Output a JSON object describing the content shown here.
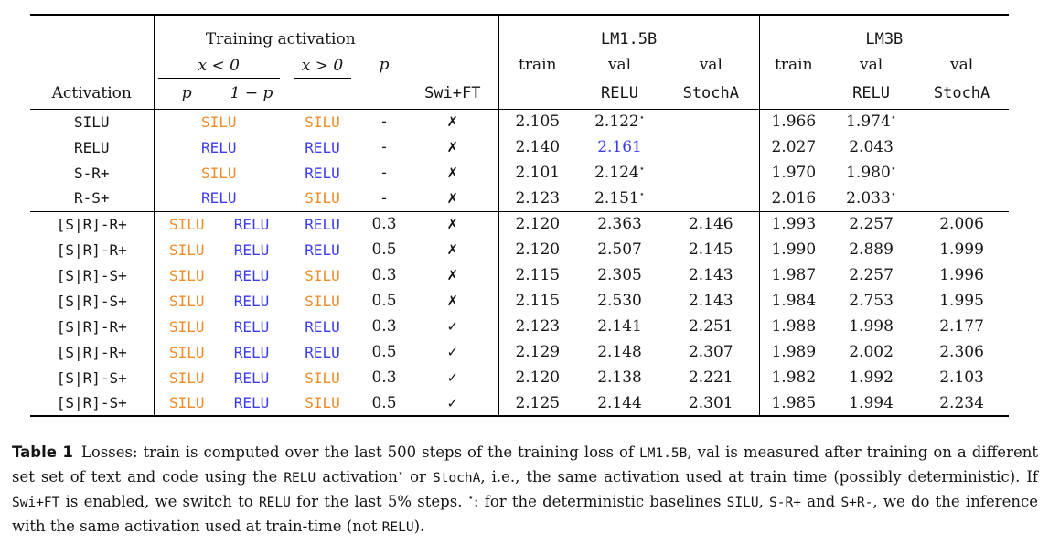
{
  "colors": {
    "silu": "#F08B26",
    "relu": "#3B3BF0"
  },
  "symbols": {
    "cross": "✗",
    "check": "✓",
    "star": "⋆"
  },
  "header": {
    "activation": "Activation",
    "training_activation": "Training activation",
    "x_lt": "x < 0",
    "x_gt": "x > 0",
    "p_col": "p",
    "p_sub": "p",
    "one_minus_p": "1 − p",
    "swift": "Swi+FT",
    "lm15b": "LM1.5B",
    "lm3b": "LM3B",
    "train": "train",
    "val": "val",
    "relu": "RELU",
    "stocha": "StochA"
  },
  "blocks": [
    {
      "rows": [
        {
          "label": "SILU",
          "neg": [
            {
              "t": "SILU",
              "c": "silu",
              "span": 2
            }
          ],
          "pos": {
            "t": "SILU",
            "c": "silu"
          },
          "p": "-",
          "ft": "cross",
          "vals": [
            {
              "v": "2.105"
            },
            {
              "v": "2.122",
              "star": true
            },
            {},
            {
              "v": "1.966"
            },
            {
              "v": "1.974",
              "star": true
            },
            {}
          ]
        },
        {
          "label": "RELU",
          "neg": [
            {
              "t": "RELU",
              "c": "relu",
              "span": 2
            }
          ],
          "pos": {
            "t": "RELU",
            "c": "relu"
          },
          "p": "-",
          "ft": "cross",
          "vals": [
            {
              "v": "2.140"
            },
            {
              "v": "2.161",
              "c": "relu"
            },
            {},
            {
              "v": "2.027"
            },
            {
              "v": "2.043"
            },
            {}
          ]
        },
        {
          "label": "S-R+",
          "neg": [
            {
              "t": "SILU",
              "c": "silu",
              "span": 2
            }
          ],
          "pos": {
            "t": "RELU",
            "c": "relu"
          },
          "p": "-",
          "ft": "cross",
          "vals": [
            {
              "v": "2.101"
            },
            {
              "v": "2.124",
              "star": true
            },
            {},
            {
              "v": "1.970"
            },
            {
              "v": "1.980",
              "star": true
            },
            {}
          ]
        },
        {
          "label": "R-S+",
          "neg": [
            {
              "t": "RELU",
              "c": "relu",
              "span": 2
            }
          ],
          "pos": {
            "t": "SILU",
            "c": "silu"
          },
          "p": "-",
          "ft": "cross",
          "vals": [
            {
              "v": "2.123"
            },
            {
              "v": "2.151",
              "star": true
            },
            {},
            {
              "v": "2.016"
            },
            {
              "v": "2.033",
              "star": true
            },
            {}
          ]
        }
      ]
    },
    {
      "rows": [
        {
          "label": "[S|R]-R+",
          "neg": [
            {
              "t": "SILU",
              "c": "silu"
            },
            {
              "t": "RELU",
              "c": "relu"
            }
          ],
          "pos": {
            "t": "RELU",
            "c": "relu"
          },
          "p": "0.3",
          "ft": "cross",
          "vals": [
            {
              "v": "2.120"
            },
            {
              "v": "2.363"
            },
            {
              "v": "2.146"
            },
            {
              "v": "1.993"
            },
            {
              "v": "2.257"
            },
            {
              "v": "2.006"
            }
          ]
        },
        {
          "label": "[S|R]-R+",
          "neg": [
            {
              "t": "SILU",
              "c": "silu"
            },
            {
              "t": "RELU",
              "c": "relu"
            }
          ],
          "pos": {
            "t": "RELU",
            "c": "relu"
          },
          "p": "0.5",
          "ft": "cross",
          "vals": [
            {
              "v": "2.120"
            },
            {
              "v": "2.507"
            },
            {
              "v": "2.145"
            },
            {
              "v": "1.990"
            },
            {
              "v": "2.889"
            },
            {
              "v": "1.999"
            }
          ]
        },
        {
          "label": "[S|R]-S+",
          "neg": [
            {
              "t": "SILU",
              "c": "silu"
            },
            {
              "t": "RELU",
              "c": "relu"
            }
          ],
          "pos": {
            "t": "SILU",
            "c": "silu"
          },
          "p": "0.3",
          "ft": "cross",
          "vals": [
            {
              "v": "2.115"
            },
            {
              "v": "2.305"
            },
            {
              "v": "2.143"
            },
            {
              "v": "1.987"
            },
            {
              "v": "2.257"
            },
            {
              "v": "1.996"
            }
          ]
        },
        {
          "label": "[S|R]-S+",
          "neg": [
            {
              "t": "SILU",
              "c": "silu"
            },
            {
              "t": "RELU",
              "c": "relu"
            }
          ],
          "pos": {
            "t": "SILU",
            "c": "silu"
          },
          "p": "0.5",
          "ft": "cross",
          "vals": [
            {
              "v": "2.115"
            },
            {
              "v": "2.530"
            },
            {
              "v": "2.143"
            },
            {
              "v": "1.984"
            },
            {
              "v": "2.753"
            },
            {
              "v": "1.995"
            }
          ]
        },
        {
          "label": "[S|R]-R+",
          "neg": [
            {
              "t": "SILU",
              "c": "silu"
            },
            {
              "t": "RELU",
              "c": "relu"
            }
          ],
          "pos": {
            "t": "RELU",
            "c": "relu"
          },
          "p": "0.3",
          "ft": "check",
          "vals": [
            {
              "v": "2.123"
            },
            {
              "v": "2.141"
            },
            {
              "v": "2.251"
            },
            {
              "v": "1.988"
            },
            {
              "v": "1.998"
            },
            {
              "v": "2.177"
            }
          ]
        },
        {
          "label": "[S|R]-R+",
          "neg": [
            {
              "t": "SILU",
              "c": "silu"
            },
            {
              "t": "RELU",
              "c": "relu"
            }
          ],
          "pos": {
            "t": "RELU",
            "c": "relu"
          },
          "p": "0.5",
          "ft": "check",
          "vals": [
            {
              "v": "2.129"
            },
            {
              "v": "2.148"
            },
            {
              "v": "2.307"
            },
            {
              "v": "1.989"
            },
            {
              "v": "2.002"
            },
            {
              "v": "2.306"
            }
          ]
        },
        {
          "label": "[S|R]-S+",
          "neg": [
            {
              "t": "SILU",
              "c": "silu"
            },
            {
              "t": "RELU",
              "c": "relu"
            }
          ],
          "pos": {
            "t": "SILU",
            "c": "silu"
          },
          "p": "0.3",
          "ft": "check",
          "vals": [
            {
              "v": "2.120"
            },
            {
              "v": "2.138"
            },
            {
              "v": "2.221"
            },
            {
              "v": "1.982"
            },
            {
              "v": "1.992"
            },
            {
              "v": "2.103"
            }
          ]
        },
        {
          "label": "[S|R]-S+",
          "neg": [
            {
              "t": "SILU",
              "c": "silu"
            },
            {
              "t": "RELU",
              "c": "relu"
            }
          ],
          "pos": {
            "t": "SILU",
            "c": "silu"
          },
          "p": "0.5",
          "ft": "check",
          "vals": [
            {
              "v": "2.125"
            },
            {
              "v": "2.144"
            },
            {
              "v": "2.301"
            },
            {
              "v": "1.985"
            },
            {
              "v": "1.994"
            },
            {
              "v": "2.234"
            }
          ]
        }
      ]
    }
  ],
  "caption": {
    "label": "Table 1",
    "parts": [
      {
        "t": "Losses: train is computed over the last 500 steps of the training loss of "
      },
      {
        "t": "LM1.5B",
        "mono": true
      },
      {
        "t": ", val is measured after training on a different set set of text and code using the "
      },
      {
        "t": "RELU",
        "mono": true
      },
      {
        "t": " activation"
      },
      {
        "t": "⋆",
        "sup": true
      },
      {
        "t": " or "
      },
      {
        "t": "StochA",
        "mono": true
      },
      {
        "t": ", i.e., the same activation used at train time (possibly deterministic). If "
      },
      {
        "t": "Swi+FT",
        "mono": true
      },
      {
        "t": " is enabled, we switch to "
      },
      {
        "t": "RELU",
        "mono": true
      },
      {
        "t": " for the last 5% steps. "
      },
      {
        "t": "⋆",
        "sup": true
      },
      {
        "t": ": for the deterministic baselines "
      },
      {
        "t": "SILU",
        "mono": true
      },
      {
        "t": ", "
      },
      {
        "t": "S-R+",
        "mono": true
      },
      {
        "t": " and "
      },
      {
        "t": "S+R-",
        "mono": true
      },
      {
        "t": ", we do the inference with the same activation used at train-time (not "
      },
      {
        "t": "RELU",
        "mono": true
      },
      {
        "t": ")."
      }
    ]
  }
}
